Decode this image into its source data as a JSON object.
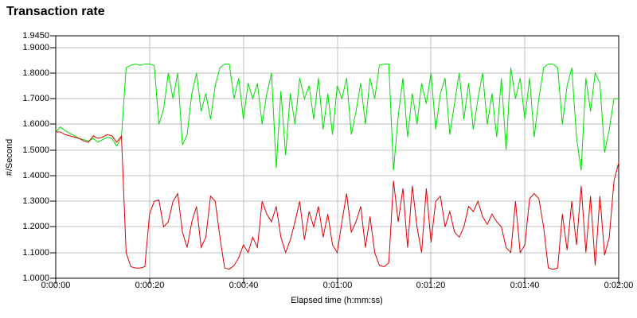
{
  "page": {
    "background": "#ffffff"
  },
  "chart_data": {
    "type": "line",
    "title": "Transaction rate",
    "xlabel": "Elapsed time (h:mm:ss)",
    "ylabel": "#/Second",
    "ylim": [
      1.0,
      1.945
    ],
    "x_seconds_range": [
      0,
      120
    ],
    "sample_interval_seconds": 1,
    "grid": true,
    "legend_position": "none",
    "colors": {
      "grid": "#c0c0c0",
      "axis": "#000000",
      "text": "#000000"
    },
    "y_ticks": [
      {
        "label": "1.9450",
        "value": 1.945
      },
      {
        "label": "1.9000",
        "value": 1.9
      },
      {
        "label": "1.8000",
        "value": 1.8
      },
      {
        "label": "1.7000",
        "value": 1.7
      },
      {
        "label": "1.6000",
        "value": 1.6
      },
      {
        "label": "1.5000",
        "value": 1.5
      },
      {
        "label": "1.4000",
        "value": 1.4
      },
      {
        "label": "1.3000",
        "value": 1.3
      },
      {
        "label": "1.2000",
        "value": 1.2
      },
      {
        "label": "1.1000",
        "value": 1.1
      },
      {
        "label": "1.0000",
        "value": 1.0
      }
    ],
    "x_ticks": [
      {
        "label": "0:00:00",
        "seconds": 0
      },
      {
        "label": "0:00:20",
        "seconds": 20
      },
      {
        "label": "0:00:40",
        "seconds": 40
      },
      {
        "label": "0:01:00",
        "seconds": 60
      },
      {
        "label": "0:01:20",
        "seconds": 80
      },
      {
        "label": "0:01:40",
        "seconds": 100
      },
      {
        "label": "0:02:00",
        "seconds": 120
      }
    ],
    "series": [
      {
        "name": "green",
        "color": "#00dd00",
        "values": [
          1.57,
          1.59,
          1.575,
          1.565,
          1.555,
          1.545,
          1.54,
          1.535,
          1.545,
          1.53,
          1.54,
          1.55,
          1.545,
          1.515,
          1.55,
          1.82,
          1.83,
          1.835,
          1.83,
          1.835,
          1.835,
          1.83,
          1.6,
          1.66,
          1.8,
          1.7,
          1.8,
          1.52,
          1.56,
          1.72,
          1.8,
          1.65,
          1.72,
          1.62,
          1.75,
          1.82,
          1.835,
          1.835,
          1.7,
          1.78,
          1.62,
          1.76,
          1.7,
          1.76,
          1.6,
          1.72,
          1.8,
          1.43,
          1.73,
          1.48,
          1.72,
          1.6,
          1.78,
          1.7,
          1.75,
          1.62,
          1.78,
          1.58,
          1.72,
          1.56,
          1.75,
          1.7,
          1.78,
          1.56,
          1.65,
          1.76,
          1.6,
          1.78,
          1.7,
          1.83,
          1.835,
          1.835,
          1.42,
          1.63,
          1.78,
          1.55,
          1.72,
          1.6,
          1.76,
          1.68,
          1.8,
          1.58,
          1.72,
          1.78,
          1.56,
          1.68,
          1.8,
          1.62,
          1.76,
          1.58,
          1.7,
          1.8,
          1.6,
          1.72,
          1.55,
          1.78,
          1.5,
          1.82,
          1.7,
          1.78,
          1.62,
          1.78,
          1.55,
          1.7,
          1.82,
          1.835,
          1.835,
          1.82,
          1.6,
          1.75,
          1.82,
          1.55,
          1.42,
          1.78,
          1.65,
          1.8,
          1.76,
          1.49,
          1.58,
          1.7,
          1.7
        ]
      },
      {
        "name": "red",
        "color": "#dd0000",
        "values": [
          1.57,
          1.57,
          1.56,
          1.555,
          1.55,
          1.545,
          1.535,
          1.53,
          1.555,
          1.545,
          1.55,
          1.56,
          1.555,
          1.53,
          1.555,
          1.1,
          1.045,
          1.04,
          1.04,
          1.045,
          1.25,
          1.3,
          1.305,
          1.2,
          1.22,
          1.3,
          1.33,
          1.18,
          1.12,
          1.22,
          1.28,
          1.12,
          1.16,
          1.32,
          1.3,
          1.16,
          1.04,
          1.035,
          1.05,
          1.08,
          1.13,
          1.1,
          1.16,
          1.12,
          1.3,
          1.25,
          1.22,
          1.28,
          1.16,
          1.1,
          1.15,
          1.22,
          1.3,
          1.15,
          1.26,
          1.2,
          1.28,
          1.16,
          1.25,
          1.13,
          1.1,
          1.22,
          1.33,
          1.18,
          1.22,
          1.28,
          1.12,
          1.24,
          1.1,
          1.05,
          1.045,
          1.06,
          1.38,
          1.22,
          1.35,
          1.12,
          1.36,
          1.2,
          1.1,
          1.35,
          1.14,
          1.3,
          1.32,
          1.2,
          1.26,
          1.18,
          1.16,
          1.2,
          1.28,
          1.26,
          1.3,
          1.24,
          1.21,
          1.25,
          1.22,
          1.2,
          1.12,
          1.1,
          1.3,
          1.1,
          1.13,
          1.31,
          1.33,
          1.31,
          1.2,
          1.04,
          1.035,
          1.04,
          1.25,
          1.11,
          1.3,
          1.13,
          1.36,
          1.1,
          1.32,
          1.05,
          1.32,
          1.09,
          1.16,
          1.38,
          1.45
        ]
      }
    ]
  }
}
